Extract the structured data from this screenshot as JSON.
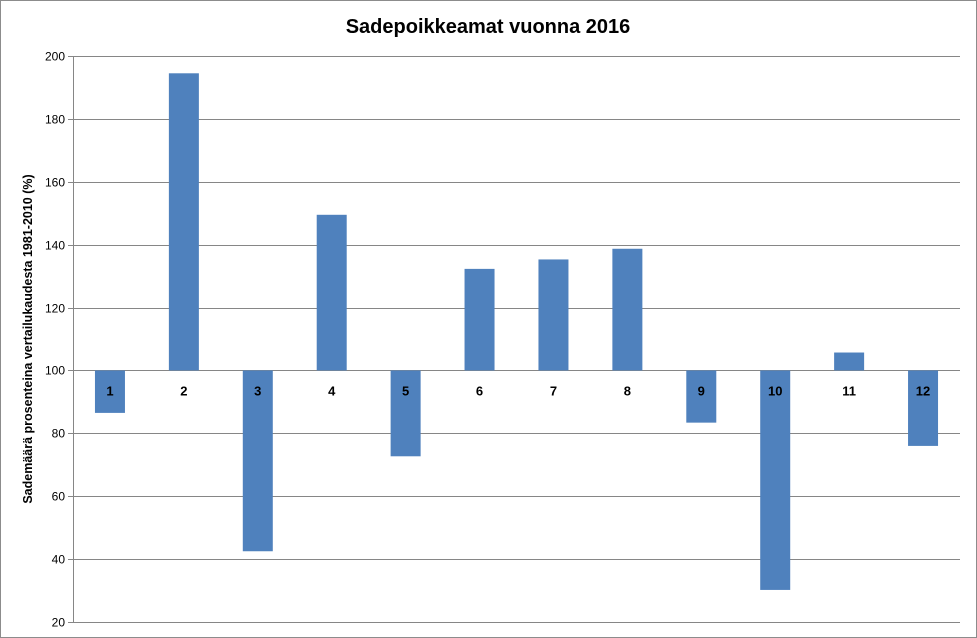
{
  "chart_data": {
    "type": "bar",
    "title": "Sadepoikkeamat vuonna 2016",
    "xlabel": "",
    "ylabel": "Sademäärä prosenteina vertailukaudesta 1981-2010 (%)",
    "categories": [
      "1",
      "2",
      "3",
      "4",
      "5",
      "6",
      "7",
      "8",
      "9",
      "10",
      "11",
      "12"
    ],
    "values": [
      86.5,
      194.5,
      42.5,
      149.5,
      72.7,
      132.3,
      135.3,
      138.7,
      83.4,
      30.2,
      105.7,
      76.0
    ],
    "baseline": 100,
    "ylim": [
      20,
      200
    ],
    "yticks": [
      20,
      40,
      60,
      80,
      100,
      120,
      140,
      160,
      180,
      200
    ],
    "grid": true,
    "legend": "none",
    "bar_color": "#4f81bd"
  }
}
